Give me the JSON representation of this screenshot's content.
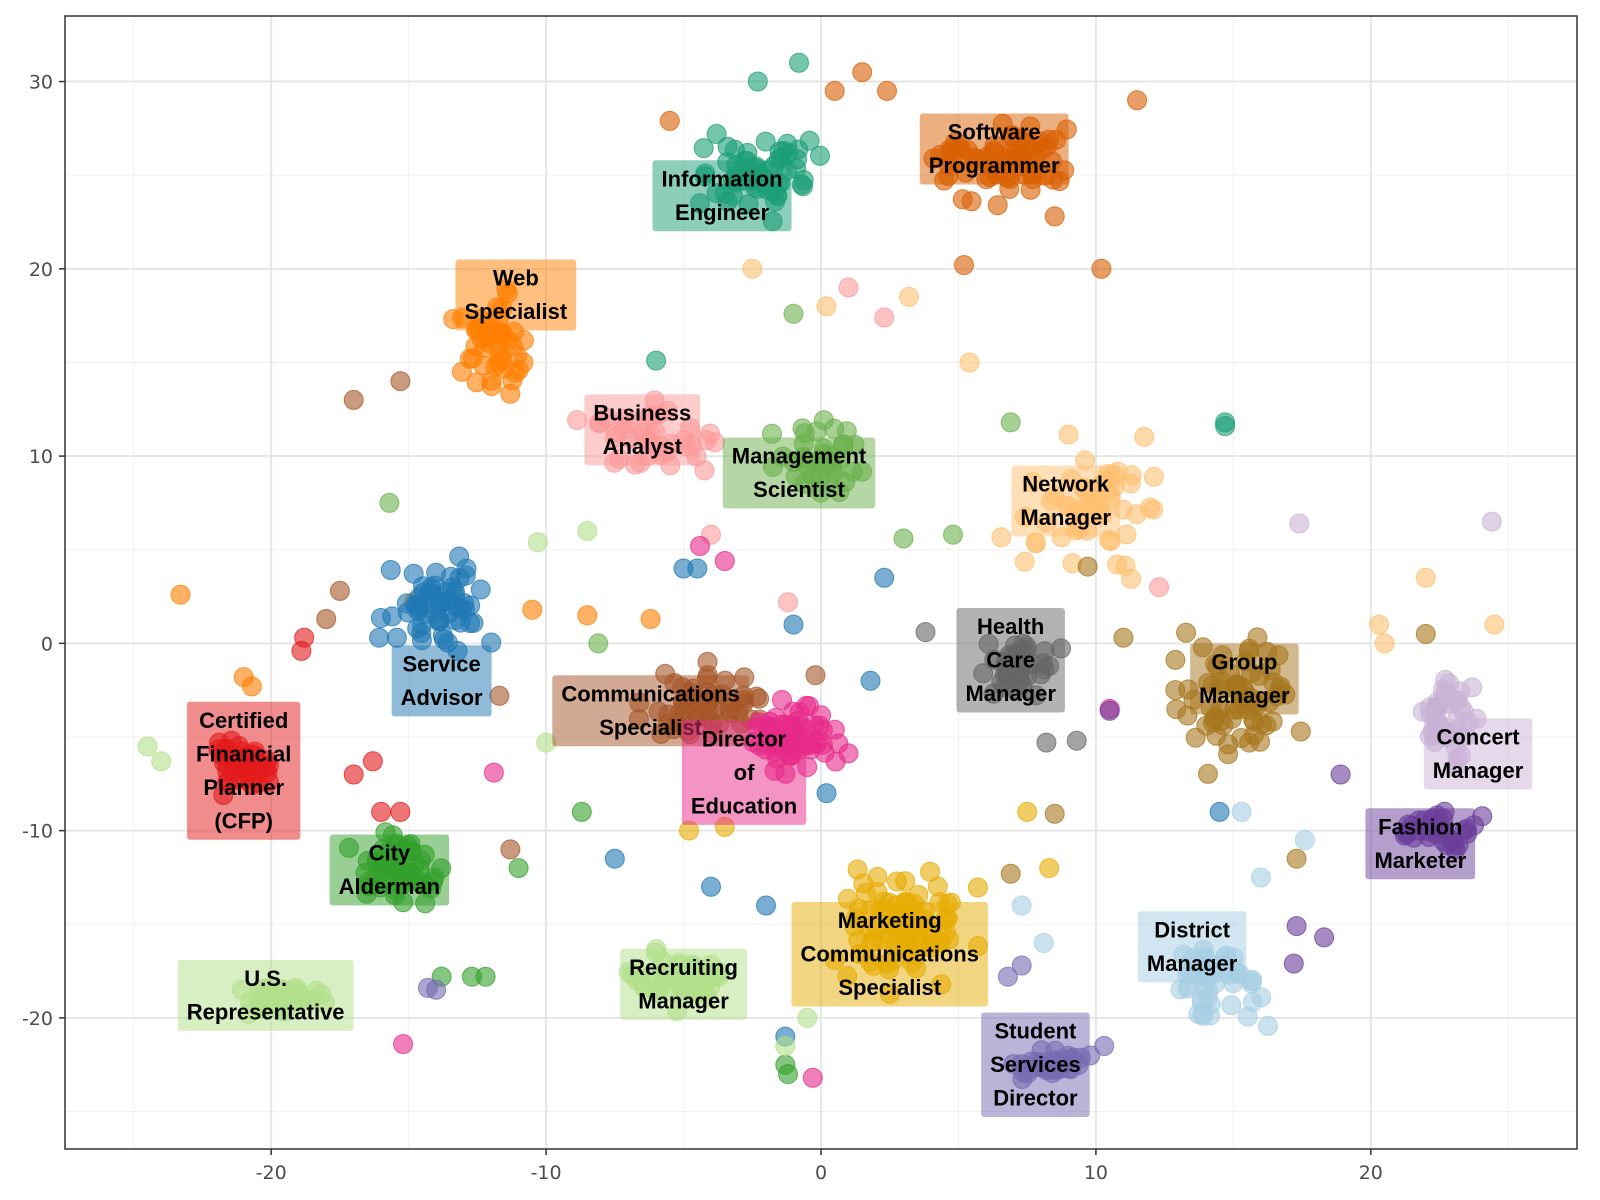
{
  "chart_data": {
    "type": "scatter",
    "title": "",
    "xlabel": "",
    "ylabel": "",
    "xlim": [
      -27.5,
      27.5
    ],
    "ylim": [
      -27,
      33.5
    ],
    "x_ticks": [
      -20,
      -10,
      0,
      10,
      20
    ],
    "y_ticks": [
      -20,
      -10,
      0,
      10,
      20,
      30
    ],
    "grid": true,
    "legend": "none",
    "clusters": [
      {
        "name": "Software\nProgrammer",
        "color": "#d95f02",
        "label_pos": [
          6.3,
          26.4
        ],
        "center": [
          6.5,
          26
        ],
        "spread": [
          4.2,
          3.3
        ],
        "count": 70,
        "extra": [
          [
            2.4,
            29.5
          ],
          [
            5.2,
            20.2
          ],
          [
            10.2,
            20
          ],
          [
            -5.5,
            27.9
          ],
          [
            1.5,
            30.5
          ],
          [
            8.5,
            22.8
          ],
          [
            0.5,
            29.5
          ],
          [
            11.5,
            29
          ]
        ]
      },
      {
        "name": "Information\nEngineer",
        "color": "#1b9e77",
        "label_pos": [
          -3.6,
          23.9
        ],
        "center": [
          -2.5,
          25
        ],
        "spread": [
          3.5,
          3.5
        ],
        "count": 60,
        "extra": [
          [
            14.7,
            11.6
          ],
          [
            14.7,
            11.8
          ],
          [
            -12.1,
            16.4
          ],
          [
            -6,
            15.1
          ],
          [
            -2.3,
            30
          ],
          [
            -0.8,
            31
          ]
        ]
      },
      {
        "name": "Web\nSpecialist",
        "color": "#ff7f00",
        "label_pos": [
          -11.1,
          18.6
        ],
        "center": [
          -12,
          16
        ],
        "spread": [
          2.4,
          4
        ],
        "count": 45,
        "extra": [
          [
            -23.3,
            2.6
          ],
          [
            -21,
            -1.8
          ],
          [
            -20.7,
            -2.3
          ],
          [
            -6.2,
            1.3
          ],
          [
            -8.5,
            1.5
          ],
          [
            -14.8,
            2.2
          ],
          [
            -10.5,
            1.8
          ]
        ]
      },
      {
        "name": "Business\nAnalyst",
        "color": "#fb9a99",
        "label_pos": [
          -6.5,
          11.4
        ],
        "center": [
          -6,
          11
        ],
        "spread": [
          4,
          3.8
        ],
        "count": 40,
        "extra": [
          [
            1,
            19
          ],
          [
            2.3,
            17.4
          ],
          [
            12.3,
            3
          ],
          [
            -4,
            5.8
          ],
          [
            -1.2,
            2.2
          ]
        ]
      },
      {
        "name": "Management\nScientist",
        "color": "#6ab04c",
        "label_pos": [
          -0.8,
          9.1
        ],
        "center": [
          0,
          10
        ],
        "spread": [
          2.5,
          3.5
        ],
        "count": 40,
        "extra": [
          [
            -15.7,
            7.5
          ],
          [
            -8.1,
            0
          ],
          [
            3,
            5.6
          ],
          [
            4.8,
            5.8
          ],
          [
            6.9,
            11.8
          ],
          [
            -1,
            17.6
          ]
        ]
      },
      {
        "name": "Network\nManager",
        "color": "#fdbf6f",
        "label_pos": [
          8.9,
          7.6
        ],
        "center": [
          10,
          7
        ],
        "spread": [
          4.5,
          5.5
        ],
        "count": 55,
        "extra": [
          [
            20.3,
            1
          ],
          [
            20.5,
            0
          ],
          [
            22,
            3.5
          ],
          [
            24.5,
            1
          ],
          [
            0.2,
            18
          ],
          [
            3.2,
            18.5
          ],
          [
            5.4,
            15
          ],
          [
            -2.5,
            20
          ]
        ]
      },
      {
        "name": "Service\nAdvisor",
        "color": "#1f78b4",
        "label_pos": [
          -13.8,
          -2
        ],
        "center": [
          -14,
          2
        ],
        "spread": [
          3.2,
          4.5
        ],
        "count": 60,
        "extra": [
          [
            -4.5,
            4
          ],
          [
            -5,
            4
          ],
          [
            -1,
            1
          ],
          [
            2.3,
            3.5
          ],
          [
            -7.5,
            -11.5
          ],
          [
            -4,
            -13
          ],
          [
            -2,
            -14
          ],
          [
            -1.3,
            -21
          ],
          [
            1.8,
            -2
          ],
          [
            14.5,
            -9
          ],
          [
            0.2,
            -8
          ]
        ]
      },
      {
        "name": "Communications\nSpecialist",
        "color": "#a65628",
        "label_pos": [
          -6.2,
          -3.6
        ],
        "center": [
          -4,
          -3
        ],
        "spread": [
          4,
          3
        ],
        "count": 55,
        "extra": [
          [
            -17,
            13
          ],
          [
            -15.3,
            14
          ],
          [
            -17.5,
            2.8
          ],
          [
            -18,
            1.3
          ],
          [
            -11.7,
            -2.8
          ],
          [
            -11.3,
            -11
          ],
          [
            -0.2,
            -1.7
          ]
        ]
      },
      {
        "name": "Director\nof\nEducation",
        "color": "#e7298a",
        "label_pos": [
          -2.8,
          -6.9
        ],
        "center": [
          -1,
          -5
        ],
        "spread": [
          3.5,
          3
        ],
        "count": 60,
        "extra": [
          [
            -15.2,
            -21.4
          ],
          [
            -11.9,
            -6.9
          ],
          [
            -0.3,
            -23.2
          ],
          [
            -4.4,
            5.2
          ],
          [
            -3.5,
            4.4
          ],
          [
            10.5,
            -3.5
          ]
        ]
      },
      {
        "name": "Health\nCare\nManager",
        "color": "#666666",
        "label_pos": [
          6.9,
          -0.9
        ],
        "center": [
          7,
          -1.5
        ],
        "spread": [
          2.3,
          3.2
        ],
        "count": 40,
        "extra": [
          [
            9.3,
            -5.2
          ],
          [
            8.2,
            -5.3
          ],
          [
            3.8,
            0.6
          ],
          [
            22.4,
            -3.4
          ]
        ]
      },
      {
        "name": "Group\nManager",
        "color": "#a6761d",
        "label_pos": [
          15.4,
          -1.9
        ],
        "center": [
          15,
          -3
        ],
        "spread": [
          3.5,
          5.5
        ],
        "count": 70,
        "extra": [
          [
            9.7,
            4.1
          ],
          [
            11,
            0.3
          ],
          [
            8.5,
            -9.1
          ],
          [
            6.9,
            -12.3
          ],
          [
            17.3,
            -11.5
          ],
          [
            22,
            0.5
          ]
        ]
      },
      {
        "name": "Concert\nManager",
        "color": "#cab2d6",
        "label_pos": [
          23.9,
          -5.9
        ],
        "center": [
          23,
          -4
        ],
        "spread": [
          1.8,
          3.8
        ],
        "count": 40,
        "extra": [
          [
            24.4,
            6.5
          ],
          [
            17.4,
            6.4
          ]
        ]
      },
      {
        "name": "Fashion\nMarketer",
        "color": "#6a3d9a",
        "label_pos": [
          21.8,
          -10.7
        ],
        "center": [
          22.5,
          -10
        ],
        "spread": [
          2.4,
          1.8
        ],
        "count": 35,
        "extra": [
          [
            18.9,
            -7
          ],
          [
            18.3,
            -15.7
          ],
          [
            17.2,
            -17.1
          ],
          [
            17.3,
            -15.1
          ],
          [
            10.5,
            -3.6
          ]
        ]
      },
      {
        "name": "Certified\nFinancial\nPlanner\n(CFP)",
        "color": "#e31a1c",
        "label_pos": [
          -21,
          -6.8
        ],
        "center": [
          -21,
          -6.5
        ],
        "spread": [
          1.8,
          2.2
        ],
        "count": 45,
        "extra": [
          [
            -18.8,
            0.3
          ],
          [
            -18.9,
            -0.4
          ],
          [
            -17,
            -7
          ],
          [
            -16.3,
            -6.3
          ],
          [
            -16,
            -9
          ],
          [
            -15.3,
            -9
          ]
        ]
      },
      {
        "name": "City\nAlderman",
        "color": "#33a02c",
        "label_pos": [
          -15.7,
          -12.1
        ],
        "center": [
          -15.5,
          -12
        ],
        "spread": [
          3,
          3
        ],
        "count": 60,
        "extra": [
          [
            -12.2,
            -17.8
          ],
          [
            -12.7,
            -17.8
          ],
          [
            -13.8,
            -17.8
          ],
          [
            -11,
            -12
          ],
          [
            -8.7,
            -9
          ],
          [
            -1.3,
            -22.5
          ],
          [
            -1.2,
            -23
          ]
        ]
      },
      {
        "name": "U.S.\nRepresentative",
        "color": "#b2df8a",
        "label_pos": [
          -20.2,
          -18.8
        ],
        "center": [
          -19.5,
          -19
        ],
        "spread": [
          3,
          1.6
        ],
        "count": 35,
        "extra": [
          [
            -24.5,
            -5.5
          ],
          [
            -24,
            -6.3
          ],
          [
            -10,
            -5.3
          ],
          [
            -10.3,
            5.4
          ],
          [
            -8.5,
            6
          ]
        ]
      },
      {
        "name": "Recruiting\nManager",
        "color": "#b2df8a",
        "label_pos": [
          -5,
          -18.2
        ],
        "center": [
          -5,
          -18
        ],
        "spread": [
          3,
          2.2
        ],
        "count": 50,
        "extra": [
          [
            -1.3,
            -21.5
          ],
          [
            -0.5,
            -20
          ]
        ]
      },
      {
        "name": "Marketing\nCommunications\nSpecialist",
        "color": "#e6ab02",
        "label_pos": [
          2.5,
          -16.6
        ],
        "center": [
          3,
          -15
        ],
        "spread": [
          4,
          5
        ],
        "count": 85,
        "extra": [
          [
            -3.5,
            -9.8
          ],
          [
            -4.8,
            -10
          ],
          [
            7.5,
            -9
          ],
          [
            8.3,
            -12
          ]
        ]
      },
      {
        "name": "District\nManager",
        "color": "#a6cee3",
        "label_pos": [
          13.5,
          -16.2
        ],
        "center": [
          14.5,
          -18
        ],
        "spread": [
          3,
          4.2
        ],
        "count": 45,
        "extra": [
          [
            15.3,
            -9
          ],
          [
            16,
            -12.5
          ],
          [
            17.6,
            -10.5
          ],
          [
            7.3,
            -14
          ],
          [
            8.1,
            -16
          ]
        ]
      },
      {
        "name": "Student\nServices\nDirector",
        "color": "#756bb1",
        "label_pos": [
          7.8,
          -22.5
        ],
        "center": [
          8.5,
          -22.5
        ],
        "spread": [
          2.2,
          1.8
        ],
        "count": 35,
        "extra": [
          [
            -14.3,
            -18.4
          ],
          [
            -14,
            -18.5
          ],
          [
            7.3,
            -17.2
          ],
          [
            6.8,
            -17.8
          ],
          [
            10.3,
            -21.5
          ]
        ]
      }
    ]
  }
}
